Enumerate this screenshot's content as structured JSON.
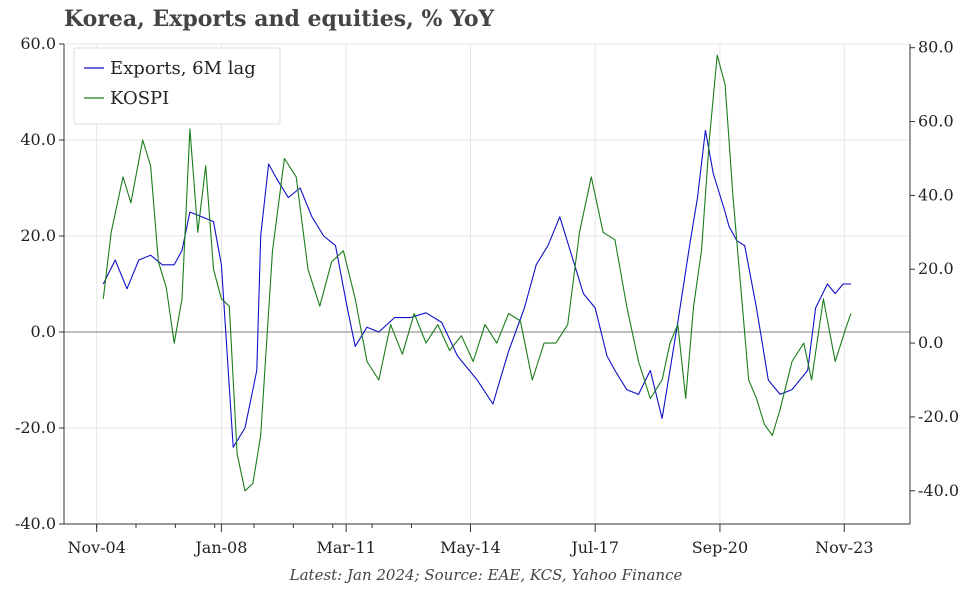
{
  "chart_data": {
    "type": "line",
    "title": "Korea, Exports and equities, % YoY",
    "source_note": "Latest: Jan 2024; Source: EAE, KCS, Yahoo Finance",
    "xlabel": "",
    "ylabel": "",
    "x_ticks": [
      "Nov-04",
      "Jan-08",
      "Mar-11",
      "May-14",
      "Jul-17",
      "Sep-20",
      "Nov-23"
    ],
    "x_tick_years": [
      2004.83,
      2008.0,
      2011.17,
      2014.33,
      2017.5,
      2020.67,
      2023.83
    ],
    "xlim": [
      2004.0,
      2025.5
    ],
    "y_left": {
      "ylim": [
        -40,
        60
      ],
      "ticks": [
        "-40.0",
        "-20.0",
        "0.0",
        "20.0",
        "40.0",
        "60.0"
      ]
    },
    "y_right": {
      "ylim": [
        -49,
        81
      ],
      "ticks": [
        "-40.0",
        "-20.0",
        "0.0",
        "20.0",
        "40.0",
        "60.0",
        "80.0"
      ]
    },
    "grid": true,
    "zero_line": true,
    "legend": "top-left",
    "series": [
      {
        "name": "Exports, 6M lag",
        "axis": "left",
        "color": "#1010c8",
        "x": [
          2005.0,
          2005.3,
          2005.6,
          2005.9,
          2006.2,
          2006.5,
          2006.8,
          2007.0,
          2007.2,
          2007.5,
          2007.8,
          2008.0,
          2008.3,
          2008.6,
          2008.9,
          2009.0,
          2009.2,
          2009.4,
          2009.7,
          2010.0,
          2010.3,
          2010.6,
          2010.9,
          2011.2,
          2011.4,
          2011.7,
          2012.0,
          2012.4,
          2012.8,
          2013.2,
          2013.6,
          2014.0,
          2014.5,
          2014.9,
          2015.3,
          2015.7,
          2016.0,
          2016.3,
          2016.6,
          2016.9,
          2017.2,
          2017.5,
          2017.8,
          2018.0,
          2018.3,
          2018.6,
          2018.9,
          2019.2,
          2019.6,
          2019.9,
          2020.1,
          2020.3,
          2020.5,
          2020.8,
          2020.9,
          2021.1,
          2021.3,
          2021.6,
          2021.9,
          2022.2,
          2022.5,
          2022.9,
          2023.1,
          2023.4,
          2023.6,
          2023.8,
          2024.0
        ],
        "y": [
          10,
          15,
          9,
          15,
          16,
          14,
          14,
          17,
          25,
          24,
          23,
          14,
          -24,
          -20,
          -8,
          20,
          35,
          32,
          28,
          30,
          24,
          20,
          18,
          5,
          -3,
          1,
          0,
          3,
          3,
          4,
          2,
          -5,
          -10,
          -15,
          -4,
          5,
          14,
          18,
          24,
          16,
          8,
          5,
          -5,
          -8,
          -12,
          -13,
          -8,
          -18,
          2,
          18,
          28,
          42,
          33,
          25,
          22,
          19,
          18,
          5,
          -10,
          -13,
          -12,
          -8,
          5,
          10,
          8,
          10,
          10
        ]
      },
      {
        "name": "KOSPI",
        "axis": "right",
        "color": "#1a7d1a",
        "x": [
          2005.0,
          2005.2,
          2005.5,
          2005.7,
          2006.0,
          2006.2,
          2006.4,
          2006.6,
          2006.8,
          2007.0,
          2007.2,
          2007.4,
          2007.6,
          2007.8,
          2008.0,
          2008.2,
          2008.4,
          2008.6,
          2008.8,
          2009.0,
          2009.3,
          2009.6,
          2009.9,
          2010.2,
          2010.5,
          2010.8,
          2011.1,
          2011.4,
          2011.7,
          2012.0,
          2012.3,
          2012.6,
          2012.9,
          2013.2,
          2013.5,
          2013.8,
          2014.1,
          2014.4,
          2014.7,
          2015.0,
          2015.3,
          2015.6,
          2015.9,
          2016.2,
          2016.5,
          2016.8,
          2017.1,
          2017.4,
          2017.7,
          2018.0,
          2018.3,
          2018.6,
          2018.9,
          2019.2,
          2019.4,
          2019.6,
          2019.8,
          2020.0,
          2020.2,
          2020.4,
          2020.6,
          2020.8,
          2021.0,
          2021.2,
          2021.4,
          2021.6,
          2021.8,
          2022.0,
          2022.2,
          2022.5,
          2022.8,
          2023.0,
          2023.3,
          2023.6,
          2023.9,
          2024.0
        ],
        "y": [
          12,
          30,
          45,
          38,
          55,
          48,
          22,
          15,
          0,
          12,
          58,
          30,
          48,
          20,
          12,
          10,
          -30,
          -40,
          -38,
          -25,
          25,
          50,
          45,
          20,
          10,
          22,
          25,
          12,
          -5,
          -10,
          5,
          -3,
          8,
          0,
          5,
          -2,
          2,
          -5,
          5,
          0,
          8,
          6,
          -10,
          0,
          0,
          5,
          30,
          45,
          30,
          28,
          10,
          -5,
          -15,
          -10,
          0,
          5,
          -15,
          10,
          25,
          55,
          78,
          70,
          40,
          15,
          -10,
          -15,
          -22,
          -25,
          -18,
          -5,
          0,
          -10,
          12,
          -5,
          5,
          8
        ]
      }
    ]
  }
}
